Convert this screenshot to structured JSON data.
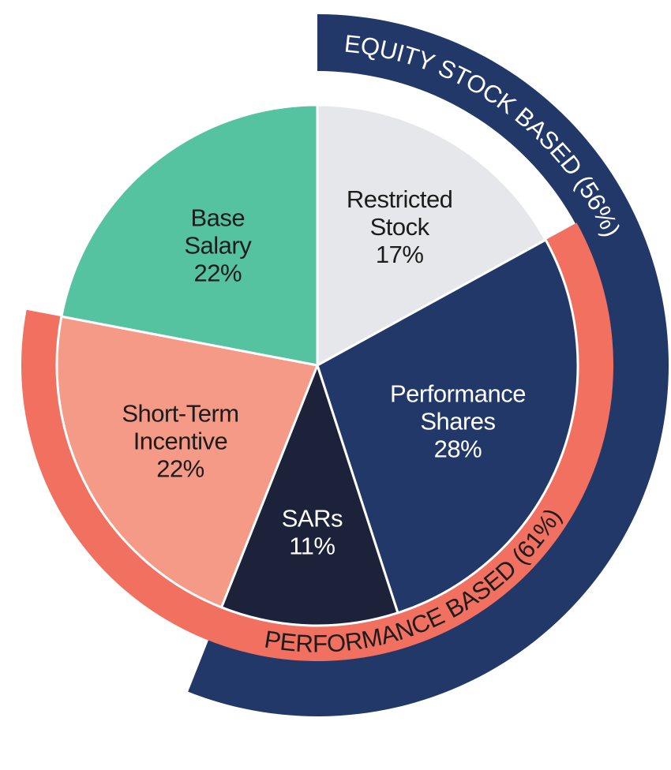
{
  "chart_data": {
    "type": "pie",
    "title": "",
    "slices": [
      {
        "id": "restricted-stock",
        "label_lines": [
          "Restricted",
          "Stock"
        ],
        "value": 17,
        "value_text": "17%",
        "color": "#e6e7ea",
        "text_color": "#1c1c1c"
      },
      {
        "id": "performance-shares",
        "label_lines": [
          "Performance",
          "Shares"
        ],
        "value": 28,
        "value_text": "28%",
        "color": "#213869",
        "text_color": "#ffffff"
      },
      {
        "id": "sars",
        "label_lines": [
          "SARs"
        ],
        "value": 11,
        "value_text": "11%",
        "color": "#1c223a",
        "text_color": "#ffffff"
      },
      {
        "id": "short-term-incentive",
        "label_lines": [
          "Short-Term",
          "Incentive"
        ],
        "value": 22,
        "value_text": "22%",
        "color": "#f49a87",
        "text_color": "#1c1c1c"
      },
      {
        "id": "base-salary",
        "label_lines": [
          "Base",
          "Salary"
        ],
        "value": 22,
        "value_text": "22%",
        "color": "#55c2a0",
        "text_color": "#1c1c1c"
      }
    ],
    "groups": [
      {
        "id": "equity-stock-based",
        "label": "EQUITY STOCK BASED (56%)",
        "percent": 56,
        "includes": [
          "restricted-stock",
          "performance-shares",
          "sars"
        ],
        "color": "#213869",
        "text_color": "#ffffff"
      },
      {
        "id": "performance-based",
        "label": "PERFORMANCE BASED (61%)",
        "percent": 61,
        "includes": [
          "performance-shares",
          "sars",
          "short-term-incentive"
        ],
        "color": "#f17060",
        "text_color": "#1c1c1c"
      }
    ]
  }
}
